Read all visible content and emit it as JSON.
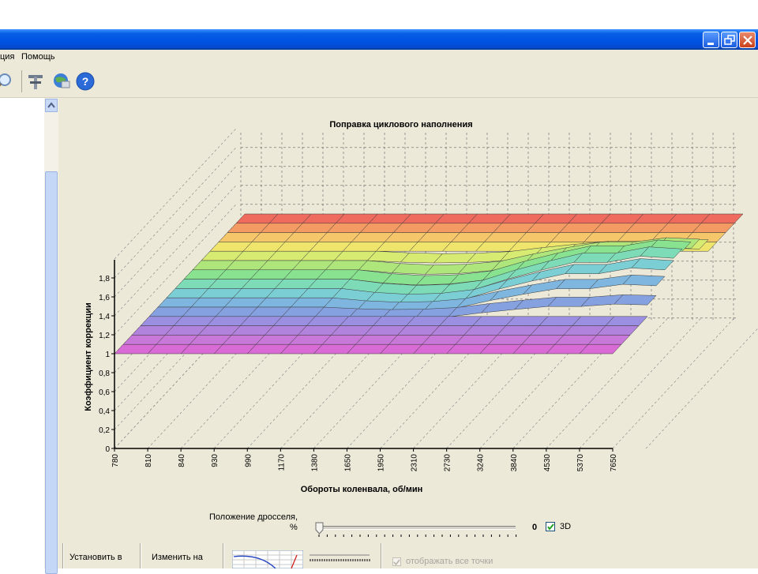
{
  "menu": {
    "item1": "ция",
    "item2": "Помощь"
  },
  "toolbar": {
    "icons": [
      "search-icon",
      "tools-icon",
      "network-icon",
      "help-icon"
    ]
  },
  "chart_data": {
    "type": "surface",
    "title": "Поправка циклового наполнения",
    "xlabel": "Обороты коленвала, об/мин",
    "ylabel": "Коэффициент коррекции",
    "categories": [
      "780",
      "810",
      "840",
      "930",
      "990",
      "1170",
      "1380",
      "1650",
      "1950",
      "2310",
      "2730",
      "3240",
      "3840",
      "4530",
      "5370",
      "7650"
    ],
    "yticks": [
      "0",
      "0,2",
      "0,4",
      "0,6",
      "0,8",
      "1",
      "1,2",
      "1,4",
      "1,6",
      "1,8"
    ],
    "ylim": [
      0,
      2
    ],
    "z_rows": 14,
    "values": [
      1,
      1,
      1,
      1,
      1,
      1,
      0.92,
      0.88,
      0.9,
      0.98,
      1.18,
      1.35,
      1.5,
      1.5,
      1.62,
      1.58
    ],
    "grid": true
  },
  "throttle": {
    "label_line1": "Положение дросселя,",
    "label_line2": "%",
    "value": "0",
    "slider_value": 0
  },
  "check3d": {
    "label": "3D",
    "checked": true
  },
  "bottom": {
    "set_label": "Установить в",
    "change_label": "Изменить на",
    "show_points_label": "отображать все точки"
  },
  "colors": {
    "window_bg": "#ece9d8",
    "titlebar": "#0054e3"
  }
}
